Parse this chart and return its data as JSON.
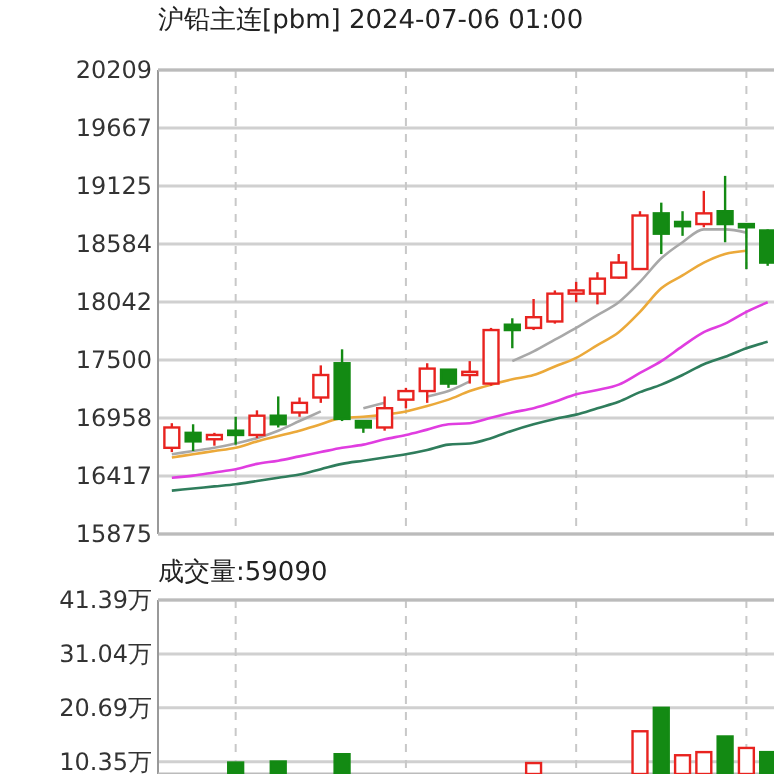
{
  "chart_data": [
    {
      "type": "candlestick",
      "title": "沪铅主连[pbm] 2024-07-06 01:00",
      "categories": [
        null,
        null,
        null,
        null,
        null,
        null,
        null,
        null,
        null,
        null,
        null,
        null,
        null,
        null,
        null,
        null,
        null,
        null,
        null,
        null,
        null,
        null,
        null,
        null,
        null,
        null,
        null,
        null,
        null
      ],
      "ohlc": [
        [
          16680,
          16910,
          16640,
          16870
        ],
        [
          16820,
          16900,
          16650,
          16740
        ],
        [
          16760,
          16820,
          16700,
          16800
        ],
        [
          16840,
          16970,
          16710,
          16800
        ],
        [
          16800,
          17030,
          16770,
          16980
        ],
        [
          16980,
          17160,
          16870,
          16900
        ],
        [
          17010,
          17150,
          16970,
          17100
        ],
        [
          17150,
          17450,
          17100,
          17360
        ],
        [
          17470,
          17600,
          16930,
          16950
        ],
        [
          16930,
          16930,
          16820,
          16870
        ],
        [
          16870,
          17160,
          16840,
          17050
        ],
        [
          17130,
          17240,
          17050,
          17210
        ],
        [
          17210,
          17470,
          17100,
          17420
        ],
        [
          17410,
          17410,
          17240,
          17280
        ],
        [
          17360,
          17490,
          17280,
          17390
        ],
        [
          17280,
          17800,
          17260,
          17780
        ],
        [
          17830,
          17890,
          17610,
          17780
        ],
        [
          17800,
          18070,
          17780,
          17900
        ],
        [
          17860,
          18150,
          17840,
          18120
        ],
        [
          18120,
          18230,
          18040,
          18150
        ],
        [
          18120,
          18320,
          18020,
          18260
        ],
        [
          18270,
          18490,
          18260,
          18410
        ],
        [
          18350,
          18890,
          18350,
          18850
        ],
        [
          18870,
          18970,
          18490,
          18680
        ],
        [
          18790,
          18890,
          18660,
          18750
        ],
        [
          18770,
          19080,
          18740,
          18870
        ],
        [
          18890,
          19220,
          18600,
          18770
        ],
        [
          18770,
          18770,
          18350,
          18740
        ],
        [
          18710,
          18720,
          18380,
          18410
        ]
      ],
      "colors": [
        "#e8231f",
        "#138a13",
        "#e8231f",
        "#138a13",
        "#e8231f",
        "#138a13",
        "#e8231f",
        "#e8231f",
        "#138a13",
        "#138a13",
        "#e8231f",
        "#e8231f",
        "#e8231f",
        "#138a13",
        "#e8231f",
        "#e8231f",
        "#138a13",
        "#e8231f",
        "#e8231f",
        "#e8231f",
        "#e8231f",
        "#e8231f",
        "#e8231f",
        "#138a13",
        "#138a13",
        "#e8231f",
        "#138a13",
        "#138a13",
        "#138a13"
      ],
      "series": [
        {
          "type": "line",
          "color": "#a8a8a8",
          "values": [
            16620,
            16650,
            16680,
            16720,
            16770,
            16840,
            16930,
            17020,
            null,
            17050,
            17100,
            null,
            17160,
            17210,
            17300,
            null,
            17490,
            17580,
            17690,
            17800,
            17920,
            18040,
            18230,
            18450,
            18600,
            18720,
            18720,
            18690,
            null
          ]
        },
        {
          "type": "line",
          "color": "#eba93a",
          "values": [
            16590,
            16620,
            16650,
            16680,
            16740,
            16790,
            16840,
            16900,
            16960,
            16970,
            16990,
            17020,
            17070,
            17130,
            17210,
            17270,
            17320,
            17360,
            17440,
            17520,
            17640,
            17760,
            17950,
            18170,
            18290,
            18410,
            18490,
            18520,
            null
          ]
        },
        {
          "type": "line",
          "color": "#e03de0",
          "values": [
            16400,
            16420,
            16450,
            16480,
            16530,
            16560,
            16600,
            16640,
            16680,
            16710,
            16760,
            16800,
            16850,
            16900,
            16910,
            16960,
            17010,
            17050,
            17110,
            17180,
            17220,
            17270,
            17380,
            17490,
            17630,
            17760,
            17840,
            17950,
            18040
          ]
        },
        {
          "type": "line",
          "color": "#2f7d5c",
          "values": [
            16280,
            16300,
            16320,
            16340,
            16370,
            16400,
            16430,
            16480,
            16530,
            16560,
            16590,
            16620,
            16660,
            16710,
            16720,
            16770,
            16840,
            16900,
            16950,
            16990,
            17050,
            17110,
            17200,
            17270,
            17360,
            17460,
            17530,
            17610,
            17670
          ]
        }
      ],
      "ylim": [
        15875,
        20209
      ],
      "yticks": [
        15875,
        16417,
        16958,
        17500,
        18042,
        18584,
        19125,
        19667,
        20209
      ],
      "grid": true,
      "tick_labels": "y"
    },
    {
      "type": "bar",
      "title": "成交量:59090",
      "categories": [
        null,
        null,
        null,
        null,
        null,
        null,
        null,
        null,
        null,
        null,
        null,
        null,
        null,
        null,
        null,
        null,
        null,
        null,
        null,
        null,
        null,
        null,
        null,
        null,
        null,
        null,
        null,
        null,
        null
      ],
      "values": [
        null,
        null,
        null,
        10.2,
        null,
        10.4,
        null,
        null,
        11.8,
        null,
        null,
        null,
        null,
        null,
        null,
        null,
        null,
        10.1,
        null,
        null,
        null,
        null,
        16.2,
        20.7,
        11.6,
        12.2,
        15.2,
        13.0,
        12.2
      ],
      "colors": [
        null,
        null,
        null,
        "#138a13",
        null,
        "#138a13",
        null,
        null,
        "#138a13",
        null,
        null,
        null,
        null,
        null,
        null,
        null,
        null,
        "#e8231f",
        null,
        null,
        null,
        null,
        "#e8231f",
        "#138a13",
        "#e8231f",
        "#e8231f",
        "#138a13",
        "#e8231f",
        "#138a13"
      ],
      "ylim": [
        8,
        41.39
      ],
      "yticks": [
        {
          "value": 10.35,
          "label": "10.35万"
        },
        {
          "value": 20.69,
          "label": "20.69万"
        },
        {
          "value": 31.04,
          "label": "31.04万"
        },
        {
          "value": 41.39,
          "label": "41.39万"
        }
      ],
      "grid": true,
      "tick_labels": "y"
    }
  ]
}
